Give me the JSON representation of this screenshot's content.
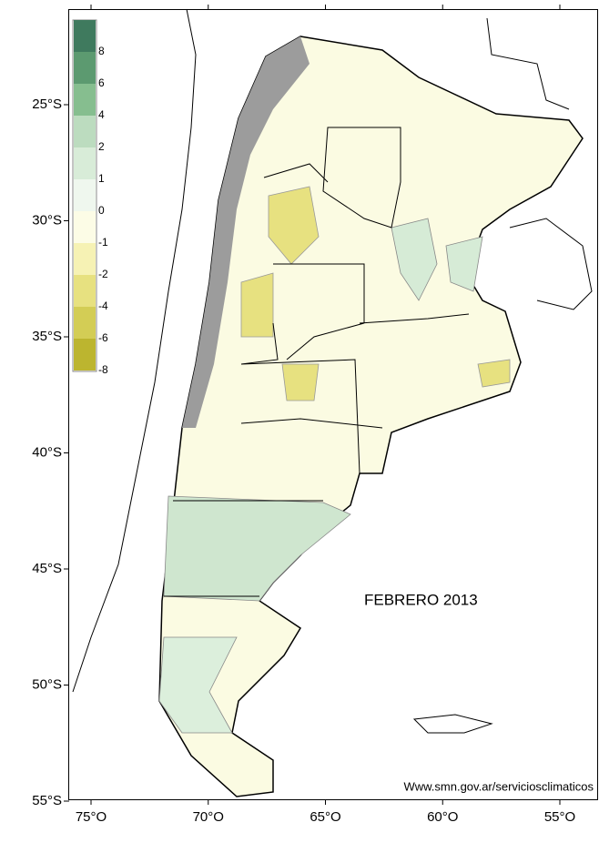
{
  "map": {
    "title": "FEBRERO 2013",
    "credit": "Www.smn.gov.ar/serviciosclimaticos",
    "lat_ticks": [
      {
        "value": -25,
        "label": "25°S"
      },
      {
        "value": -30,
        "label": "30°S"
      },
      {
        "value": -35,
        "label": "35°S"
      },
      {
        "value": -40,
        "label": "40°S"
      },
      {
        "value": -45,
        "label": "45°S"
      },
      {
        "value": -50,
        "label": "50°S"
      },
      {
        "value": -55,
        "label": "55°S"
      }
    ],
    "lon_ticks": [
      {
        "value": -75,
        "label": "75°O"
      },
      {
        "value": -70,
        "label": "70°O"
      },
      {
        "value": -65,
        "label": "65°O"
      },
      {
        "value": -60,
        "label": "60°O"
      },
      {
        "value": -55,
        "label": "55°O"
      }
    ],
    "legend": {
      "values": [
        8,
        6,
        4,
        2,
        1,
        0,
        -1,
        -2,
        -4,
        -6,
        -8
      ],
      "colors": [
        "#3f7a5e",
        "#5c9a70",
        "#86be8f",
        "#bcdcbf",
        "#d8ecd8",
        "#eff7ee",
        "#fcfce6",
        "#f6f2b4",
        "#e7e180",
        "#d3cd55",
        "#bcb52f"
      ]
    }
  }
}
